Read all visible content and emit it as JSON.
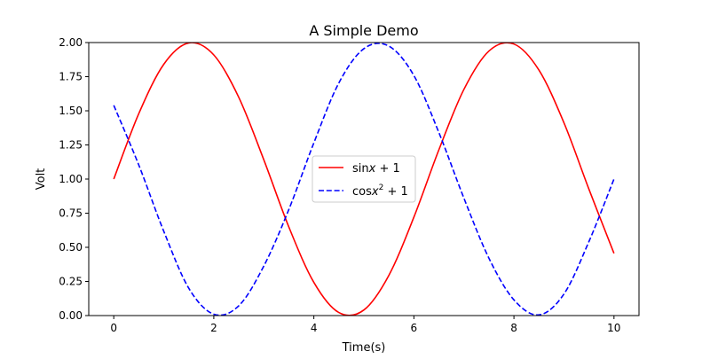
{
  "chart_data": {
    "type": "line",
    "title": "A Simple Demo",
    "xlabel": "Time(s)",
    "ylabel": "Volt",
    "xlim": [
      -0.5,
      10.5
    ],
    "ylim": [
      0.0,
      2.0
    ],
    "xticks": [
      0,
      2,
      4,
      6,
      8,
      10
    ],
    "xtick_labels": [
      "0",
      "2",
      "4",
      "6",
      "8",
      "10"
    ],
    "yticks": [
      0.0,
      0.25,
      0.5,
      0.75,
      1.0,
      1.25,
      1.5,
      1.75,
      2.0
    ],
    "ytick_labels": [
      "0.00",
      "0.25",
      "0.50",
      "0.75",
      "1.00",
      "1.25",
      "1.50",
      "1.75",
      "2.00"
    ],
    "grid": false,
    "legend_position": "center",
    "series": [
      {
        "name": "sinx + 1",
        "name_parts": {
          "func": "sin",
          "var": "x",
          "sup": "",
          "rest": " + 1"
        },
        "color": "#ff0000",
        "style": "solid",
        "x": [
          0.0,
          0.5,
          1.0,
          1.5,
          2.0,
          2.5,
          3.0,
          3.5,
          4.0,
          4.5,
          5.0,
          5.5,
          6.0,
          6.5,
          7.0,
          7.5,
          8.0,
          8.5,
          9.0,
          9.5,
          10.0
        ],
        "y": [
          1.0,
          1.479,
          1.841,
          1.997,
          1.909,
          1.598,
          1.141,
          0.649,
          0.243,
          0.022,
          0.041,
          0.295,
          0.721,
          1.215,
          1.657,
          1.938,
          1.989,
          1.798,
          1.412,
          0.925,
          0.456
        ]
      },
      {
        "name": "cosx² + 1",
        "name_parts": {
          "func": "cos",
          "var": "x",
          "sup": "2",
          "rest": " + 1"
        },
        "color": "#0000ff",
        "style": "dashed",
        "x": [
          0.0,
          0.5,
          1.0,
          1.5,
          2.0,
          2.5,
          3.0,
          3.5,
          4.0,
          4.5,
          5.0,
          5.5,
          6.0,
          6.5,
          7.0,
          7.5,
          8.0,
          8.5,
          9.0,
          9.5,
          10.0
        ],
        "y": [
          1.54,
          1.103,
          0.617,
          0.2,
          0.01,
          0.072,
          0.363,
          0.777,
          1.265,
          1.704,
          1.955,
          1.974,
          1.758,
          1.34,
          0.86,
          0.42,
          0.115,
          0.005,
          0.158,
          0.543,
          1.0
        ]
      }
    ]
  }
}
